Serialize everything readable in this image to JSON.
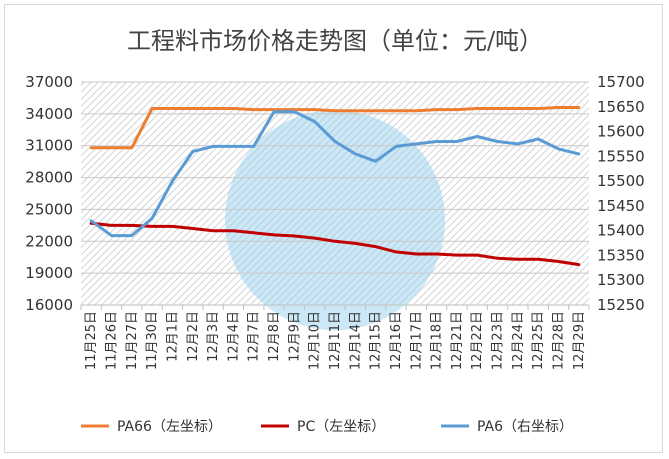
{
  "chart_data": {
    "type": "line",
    "title": "工程料市场价格走势图（单位：元/吨）",
    "categories": [
      "11月25日",
      "11月26日",
      "11月27日",
      "11月30日",
      "12月1日",
      "12月2日",
      "12月3日",
      "12月4日",
      "12月7日",
      "12月8日",
      "12月9日",
      "12月10日",
      "12月11日",
      "12月14日",
      "12月15日",
      "12月16日",
      "12月17日",
      "12月18日",
      "12月21日",
      "12月22日",
      "12月23日",
      "12月24日",
      "12月25日",
      "12月28日",
      "12月29日"
    ],
    "left_axis": {
      "ylim": [
        16000,
        37000
      ],
      "ticks": [
        16000,
        19000,
        22000,
        25000,
        28000,
        31000,
        34000,
        37000
      ]
    },
    "right_axis": {
      "ylim": [
        15250,
        15700
      ],
      "ticks": [
        15250,
        15300,
        15350,
        15400,
        15450,
        15500,
        15550,
        15600,
        15650,
        15700
      ]
    },
    "series": [
      {
        "name": "PA66（左坐标）",
        "axis": "left",
        "color": "#ed7d31",
        "values": [
          30800,
          30800,
          30800,
          34500,
          34500,
          34500,
          34500,
          34500,
          34400,
          34400,
          34400,
          34400,
          34300,
          34300,
          34300,
          34300,
          34300,
          34400,
          34400,
          34500,
          34500,
          34500,
          34500,
          34600,
          34600
        ]
      },
      {
        "name": "PC（左坐标）",
        "axis": "left",
        "color": "#c00000",
        "values": [
          23700,
          23500,
          23500,
          23400,
          23400,
          23200,
          23000,
          23000,
          22800,
          22600,
          22500,
          22300,
          22000,
          21800,
          21500,
          21000,
          20800,
          20800,
          20700,
          20700,
          20400,
          20300,
          20300,
          20100,
          19800
        ]
      },
      {
        "name": "PA6（右坐标）",
        "axis": "right",
        "color": "#5b9bd5",
        "values": [
          15420,
          15390,
          15390,
          15425,
          15500,
          15560,
          15570,
          15570,
          15570,
          15640,
          15640,
          15620,
          15580,
          15555,
          15540,
          15570,
          15575,
          15580,
          15580,
          15590,
          15580,
          15575,
          15585,
          15565,
          15555
        ]
      }
    ]
  }
}
